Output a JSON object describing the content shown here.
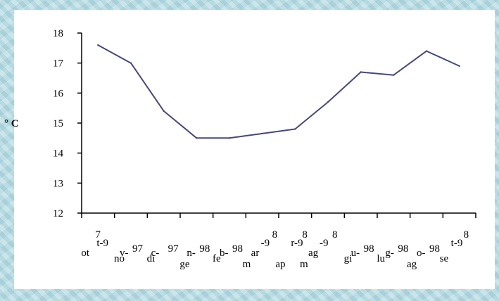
{
  "chart_data": {
    "type": "line",
    "ylabel": "° C",
    "ylim": [
      12,
      18
    ],
    "yticks": [
      "12",
      "13",
      "14",
      "15",
      "16",
      "17",
      "18"
    ],
    "categories": [
      "ott-97",
      "nov-97",
      "dic-97",
      "gen-98",
      "feb-98",
      "mar-98",
      "apr-98",
      "mag-98",
      "giu-98",
      "lug-98",
      "ago-98",
      "set-98"
    ],
    "values": [
      17.6,
      17.0,
      15.4,
      14.5,
      14.5,
      14.65,
      14.8,
      15.7,
      16.7,
      16.6,
      17.4,
      16.9
    ],
    "line_color": "#46487a",
    "grid": false,
    "legend": "none",
    "x_label_fragments": [
      {
        "text": "7",
        "cat": 0,
        "dx": -4,
        "row": 0
      },
      {
        "text": "ot",
        "cat": 0,
        "dx": -24,
        "row": 3
      },
      {
        "text": "t-9",
        "cat": 0,
        "dx": -2,
        "row": 1
      },
      {
        "text": "v-",
        "cat": 1,
        "dx": -16,
        "row": 3
      },
      {
        "text": "97",
        "cat": 1,
        "dx": 2,
        "row": 2
      },
      {
        "text": "no",
        "cat": 1,
        "dx": -24,
        "row": 4
      },
      {
        "text": "c-",
        "cat": 2,
        "dx": -18,
        "row": 3
      },
      {
        "text": "97",
        "cat": 2,
        "dx": 6,
        "row": 2
      },
      {
        "text": "di",
        "cat": 2,
        "dx": -24,
        "row": 4
      },
      {
        "text": "n-",
        "cat": 3,
        "dx": -14,
        "row": 3
      },
      {
        "text": "98",
        "cat": 3,
        "dx": 4,
        "row": 2
      },
      {
        "text": "ge",
        "cat": 3,
        "dx": -24,
        "row": 5
      },
      {
        "text": "b-",
        "cat": 4,
        "dx": -14,
        "row": 3
      },
      {
        "text": "98",
        "cat": 4,
        "dx": 4,
        "row": 2
      },
      {
        "text": "fe",
        "cat": 4,
        "dx": -24,
        "row": 4
      },
      {
        "text": "8",
        "cat": 5,
        "dx": 14,
        "row": 0
      },
      {
        "text": "-9",
        "cat": 5,
        "dx": -2,
        "row": 1
      },
      {
        "text": "ar",
        "cat": 5,
        "dx": -16,
        "row": 3
      },
      {
        "text": "m",
        "cat": 5,
        "dx": -28,
        "row": 5
      },
      {
        "text": "8",
        "cat": 6,
        "dx": 10,
        "row": 0
      },
      {
        "text": "r-9",
        "cat": 6,
        "dx": -6,
        "row": 1
      },
      {
        "text": "ap",
        "cat": 6,
        "dx": -28,
        "row": 5
      },
      {
        "text": "8",
        "cat": 7,
        "dx": 6,
        "row": 0
      },
      {
        "text": "-9",
        "cat": 7,
        "dx": -12,
        "row": 1
      },
      {
        "text": "ag",
        "cat": 7,
        "dx": -28,
        "row": 3
      },
      {
        "text": "m",
        "cat": 7,
        "dx": -40,
        "row": 5
      },
      {
        "text": "98",
        "cat": 8,
        "dx": 4,
        "row": 2
      },
      {
        "text": "u-",
        "cat": 8,
        "dx": -14,
        "row": 3
      },
      {
        "text": "gi",
        "cat": 8,
        "dx": -24,
        "row": 4
      },
      {
        "text": "98",
        "cat": 9,
        "dx": 6,
        "row": 2
      },
      {
        "text": "g-",
        "cat": 9,
        "dx": -12,
        "row": 3
      },
      {
        "text": "lu",
        "cat": 9,
        "dx": -24,
        "row": 4
      },
      {
        "text": "98",
        "cat": 10,
        "dx": 4,
        "row": 2
      },
      {
        "text": "o-",
        "cat": 10,
        "dx": -14,
        "row": 3
      },
      {
        "text": "ag",
        "cat": 10,
        "dx": -28,
        "row": 5
      },
      {
        "text": "8",
        "cat": 11,
        "dx": 6,
        "row": 0
      },
      {
        "text": "t-9",
        "cat": 11,
        "dx": -12,
        "row": 1
      },
      {
        "text": "se",
        "cat": 11,
        "dx": -28,
        "row": 4
      }
    ]
  }
}
